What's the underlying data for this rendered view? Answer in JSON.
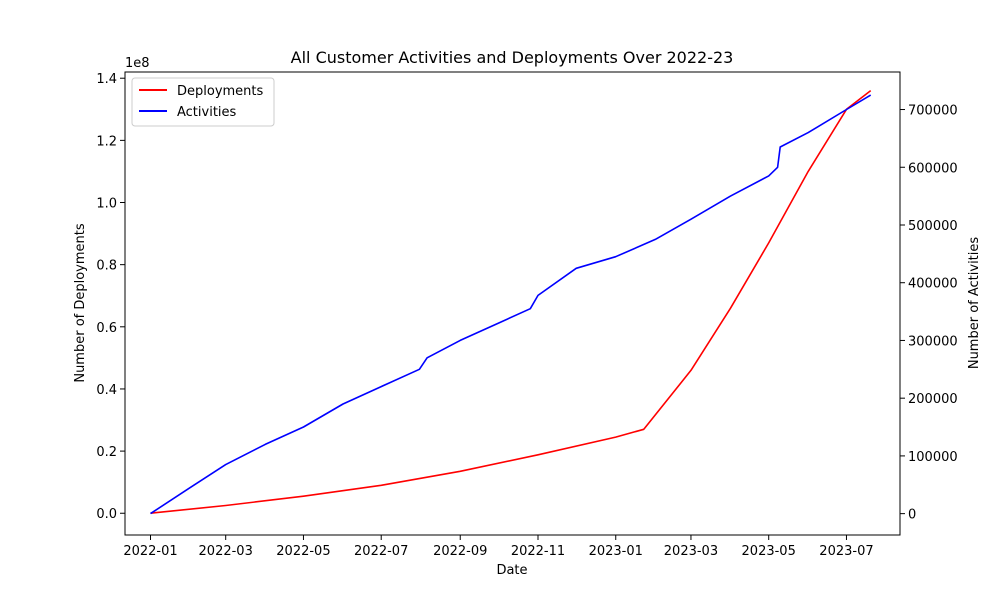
{
  "chart_data": {
    "type": "line",
    "title": "All Customer Activities and Deployments Over 2022-23",
    "xlabel": "Date",
    "ylabel_left": "Number of Deployments",
    "ylabel_right": "Number of Activities",
    "left_axis_offset_label": "1e8",
    "x_range": [
      "2021-12-12",
      "2023-08-12"
    ],
    "ylim_left": [
      -7000000,
      142000000
    ],
    "ylim_right": [
      -37000,
      765000
    ],
    "x_ticks": [
      {
        "date": "2022-01-01",
        "label": "2022-01"
      },
      {
        "date": "2022-03-01",
        "label": "2022-03"
      },
      {
        "date": "2022-05-01",
        "label": "2022-05"
      },
      {
        "date": "2022-07-01",
        "label": "2022-07"
      },
      {
        "date": "2022-09-01",
        "label": "2022-09"
      },
      {
        "date": "2022-11-01",
        "label": "2022-11"
      },
      {
        "date": "2023-01-01",
        "label": "2023-01"
      },
      {
        "date": "2023-03-01",
        "label": "2023-03"
      },
      {
        "date": "2023-05-01",
        "label": "2023-05"
      },
      {
        "date": "2023-07-01",
        "label": "2023-07"
      }
    ],
    "y_ticks_left": [
      {
        "value": 0,
        "label": "0.0"
      },
      {
        "value": 20000000,
        "label": "0.2"
      },
      {
        "value": 40000000,
        "label": "0.4"
      },
      {
        "value": 60000000,
        "label": "0.6"
      },
      {
        "value": 80000000,
        "label": "0.8"
      },
      {
        "value": 100000000,
        "label": "1.0"
      },
      {
        "value": 120000000,
        "label": "1.2"
      },
      {
        "value": 140000000,
        "label": "1.4"
      }
    ],
    "y_ticks_right": [
      {
        "value": 0,
        "label": "0"
      },
      {
        "value": 100000,
        "label": "100000"
      },
      {
        "value": 200000,
        "label": "200000"
      },
      {
        "value": 300000,
        "label": "300000"
      },
      {
        "value": 400000,
        "label": "400000"
      },
      {
        "value": 500000,
        "label": "500000"
      },
      {
        "value": 600000,
        "label": "600000"
      },
      {
        "value": 700000,
        "label": "700000"
      }
    ],
    "legend_position": "top-left",
    "grid": false,
    "series": [
      {
        "name": "Deployments",
        "color": "#ff0000",
        "axis": "left",
        "points": [
          {
            "x": "2022-01-01",
            "y": 0
          },
          {
            "x": "2022-03-01",
            "y": 2500000
          },
          {
            "x": "2022-05-01",
            "y": 5500000
          },
          {
            "x": "2022-07-01",
            "y": 9000000
          },
          {
            "x": "2022-09-01",
            "y": 13500000
          },
          {
            "x": "2022-11-01",
            "y": 18800000
          },
          {
            "x": "2023-01-01",
            "y": 24500000
          },
          {
            "x": "2023-01-23",
            "y": 27000000
          },
          {
            "x": "2023-03-01",
            "y": 46000000
          },
          {
            "x": "2023-04-01",
            "y": 66000000
          },
          {
            "x": "2023-05-01",
            "y": 87000000
          },
          {
            "x": "2023-06-01",
            "y": 110000000
          },
          {
            "x": "2023-07-01",
            "y": 130000000
          },
          {
            "x": "2023-07-20",
            "y": 136000000
          }
        ]
      },
      {
        "name": "Activities",
        "color": "#0000ff",
        "axis": "right",
        "points": [
          {
            "x": "2022-01-01",
            "y": 0
          },
          {
            "x": "2022-02-01",
            "y": 45000
          },
          {
            "x": "2022-03-01",
            "y": 85000
          },
          {
            "x": "2022-04-01",
            "y": 120000
          },
          {
            "x": "2022-05-01",
            "y": 150000
          },
          {
            "x": "2022-06-01",
            "y": 190000
          },
          {
            "x": "2022-07-01",
            "y": 220000
          },
          {
            "x": "2022-07-31",
            "y": 250000
          },
          {
            "x": "2022-08-06",
            "y": 270000
          },
          {
            "x": "2022-09-01",
            "y": 300000
          },
          {
            "x": "2022-10-01",
            "y": 330000
          },
          {
            "x": "2022-10-26",
            "y": 355000
          },
          {
            "x": "2022-11-01",
            "y": 378000
          },
          {
            "x": "2022-12-01",
            "y": 425000
          },
          {
            "x": "2023-01-01",
            "y": 445000
          },
          {
            "x": "2023-02-01",
            "y": 475000
          },
          {
            "x": "2023-03-01",
            "y": 510000
          },
          {
            "x": "2023-04-01",
            "y": 550000
          },
          {
            "x": "2023-05-01",
            "y": 585000
          },
          {
            "x": "2023-05-08",
            "y": 600000
          },
          {
            "x": "2023-05-10",
            "y": 635000
          },
          {
            "x": "2023-06-01",
            "y": 660000
          },
          {
            "x": "2023-07-01",
            "y": 700000
          },
          {
            "x": "2023-07-20",
            "y": 725000
          }
        ]
      }
    ]
  }
}
